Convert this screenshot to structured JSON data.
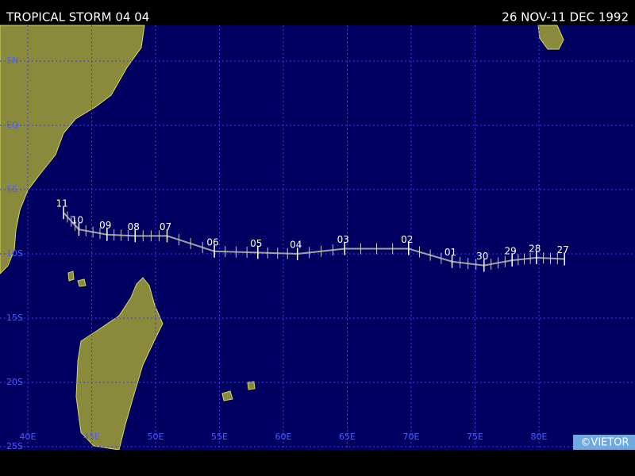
{
  "header": {
    "title": "TROPICAL STORM 04 04",
    "dates": "26 NOV-11 DEC 1992"
  },
  "map": {
    "lat_lines": [
      {
        "value": 5,
        "label": "5N"
      },
      {
        "value": 0,
        "label": "EQ"
      },
      {
        "value": -5,
        "label": "5S"
      },
      {
        "value": -10,
        "label": "10S"
      },
      {
        "value": -15,
        "label": "15S"
      },
      {
        "value": -20,
        "label": "20S"
      },
      {
        "value": -25,
        "label": "25S"
      }
    ],
    "lon_lines": [
      {
        "value": 40,
        "label": "40E"
      },
      {
        "value": 45,
        "label": "45E"
      },
      {
        "value": 50,
        "label": "50E"
      },
      {
        "value": 55,
        "label": "55E"
      },
      {
        "value": 60,
        "label": "60E"
      },
      {
        "value": 65,
        "label": "65E"
      },
      {
        "value": 70,
        "label": "70E"
      },
      {
        "value": 75,
        "label": "75E"
      },
      {
        "value": 80,
        "label": "80E"
      }
    ],
    "track": [
      {
        "label": "27",
        "lon": 82.0,
        "lat": -10.4
      },
      {
        "label": "28",
        "lon": 79.8,
        "lat": -10.3
      },
      {
        "label": "29",
        "lon": 77.9,
        "lat": -10.5
      },
      {
        "label": "30",
        "lon": 75.7,
        "lat": -10.9
      },
      {
        "label": "01",
        "lon": 73.2,
        "lat": -10.6
      },
      {
        "label": "02",
        "lon": 69.8,
        "lat": -9.6
      },
      {
        "label": "03",
        "lon": 64.8,
        "lat": -9.6
      },
      {
        "label": "04",
        "lon": 61.1,
        "lat": -10.0
      },
      {
        "label": "05",
        "lon": 58.0,
        "lat": -9.9
      },
      {
        "label": "06",
        "lon": 54.6,
        "lat": -9.8
      },
      {
        "label": "07",
        "lon": 50.9,
        "lat": -8.6
      },
      {
        "label": "08",
        "lon": 48.4,
        "lat": -8.6
      },
      {
        "label": "09",
        "lon": 46.2,
        "lat": -8.5
      },
      {
        "label": "10",
        "lon": 44.0,
        "lat": -8.1
      },
      {
        "label": "11",
        "lon": 42.8,
        "lat": -6.8
      }
    ],
    "credit": "©VIETOR"
  }
}
